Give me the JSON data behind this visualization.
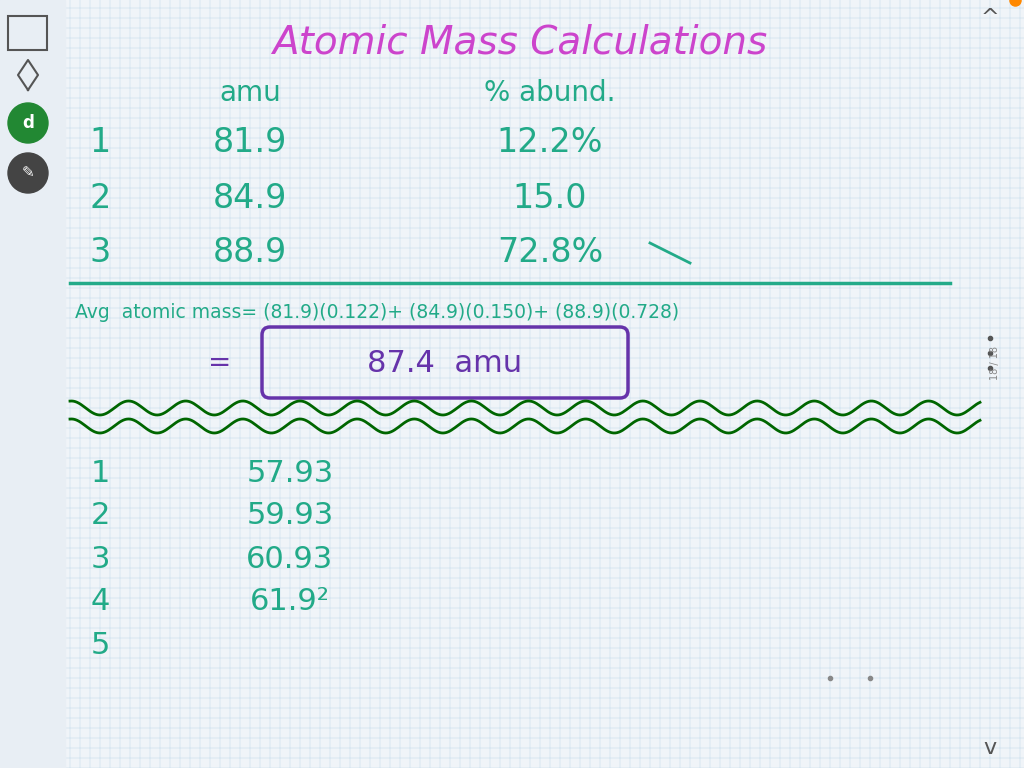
{
  "title": "Atomic Mass Calculations",
  "title_color": "#cc44cc",
  "title_font": 28,
  "bg_color": "#f0f4f8",
  "grid_color": "#b8d4e8",
  "header_amu": "amu",
  "header_abund": "% abund.",
  "header_color": "#22aa88",
  "isotope_color": "#22aa88",
  "formula_color": "#22aa88",
  "result_color": "#6633aa",
  "row_numbers": [
    "1",
    "2",
    "3"
  ],
  "amu_values": [
    "81.9",
    "84.9",
    "88.9"
  ],
  "abund_values": [
    "12.2%",
    "15.0",
    "72.8%"
  ],
  "formula_line1": "Avg  atomic mass= (81.9)(0.122)+ (84.9)(0.150)+ (88.9)(0.728)",
  "formula_line2": "=",
  "result_boxed": "87.4  amu",
  "lower_numbers": [
    "1",
    "2",
    "3",
    "4",
    "5"
  ],
  "lower_values": [
    "57.93",
    "59.93",
    "60.93",
    "61.9²",
    ""
  ],
  "wave_color": "#006600",
  "sidebar_color": "#888888"
}
